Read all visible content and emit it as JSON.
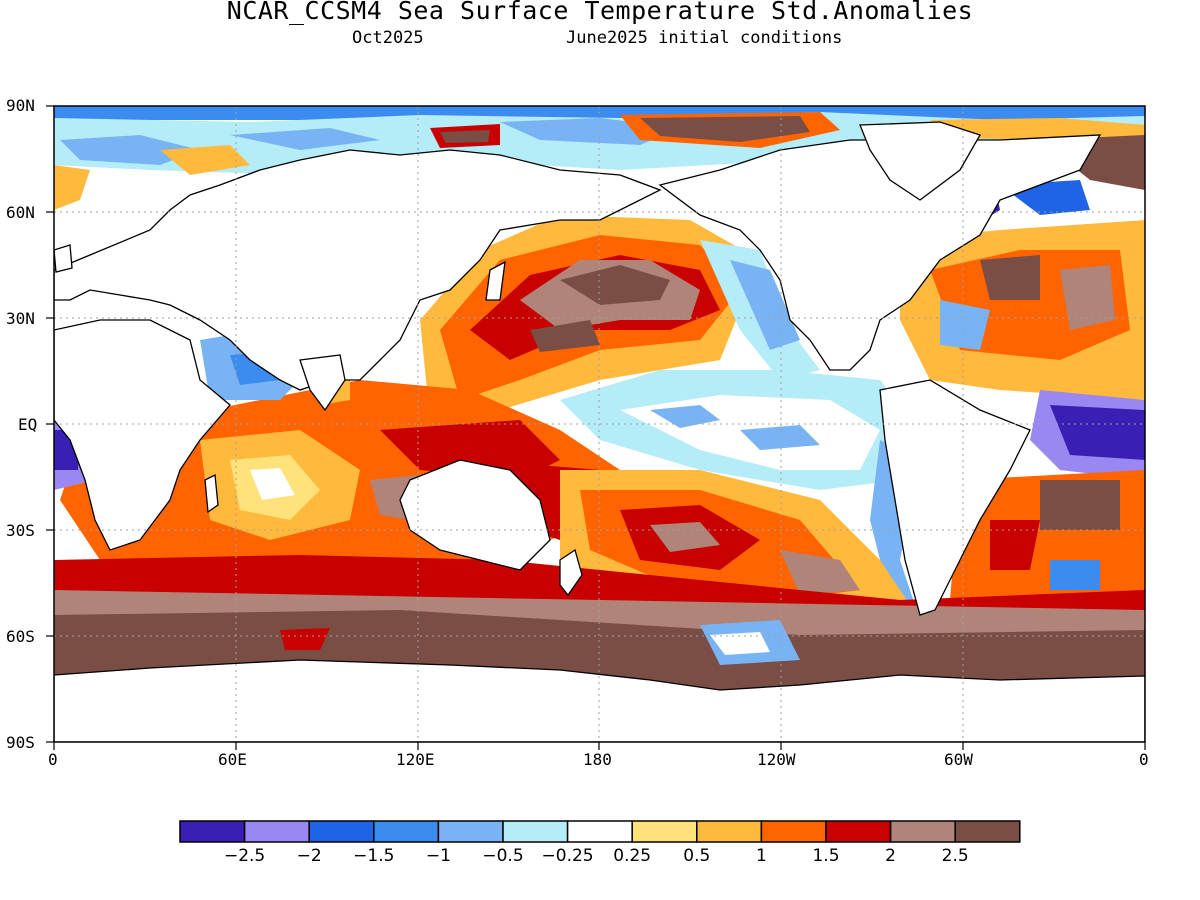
{
  "title": "NCAR_CCSM4 Sea Surface Temperature Std.Anomalies",
  "subtitle_left": "Oct2025",
  "subtitle_right": "June2025 initial conditions",
  "y_ticks": [
    "90N",
    "60N",
    "30N",
    "EQ",
    "30S",
    "60S",
    "90S"
  ],
  "x_ticks": [
    "0",
    "60E",
    "120E",
    "180",
    "120W",
    "60W",
    "0"
  ],
  "colorbar": {
    "colors": [
      "#3b1fb4",
      "#9a88f2",
      "#1f64e6",
      "#3c8cf0",
      "#78b4f4",
      "#b4ecf8",
      "#ffffff",
      "#ffe27a",
      "#ffb93c",
      "#ff6400",
      "#c80000",
      "#b08478",
      "#7a4e44"
    ],
    "labels": [
      "−2.5",
      "−2",
      "−1.5",
      "−1",
      "−0.5",
      "−0.25",
      "0.25",
      "0.5",
      "1",
      "1.5",
      "2",
      "2.5"
    ]
  }
}
